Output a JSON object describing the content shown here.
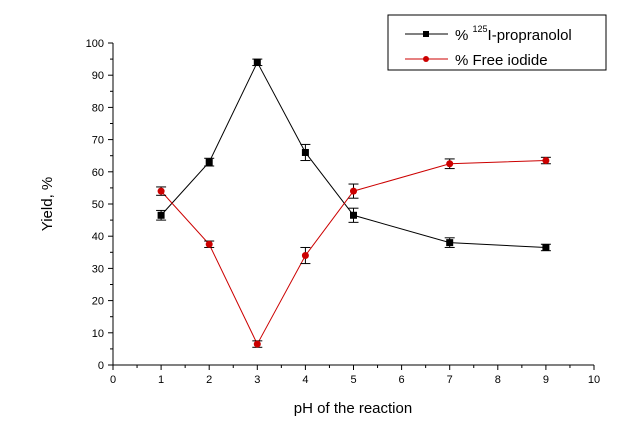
{
  "chart_data": {
    "type": "line",
    "title": "",
    "xlabel": "pH of the reaction",
    "ylabel": "Yield, %",
    "xlim": [
      0,
      10
    ],
    "ylim": [
      0,
      100
    ],
    "x_ticks": [
      "0",
      "1",
      "2",
      "3",
      "4",
      "5",
      "6",
      "7",
      "8",
      "9",
      "10"
    ],
    "y_ticks": [
      "0",
      "10",
      "20",
      "30",
      "40",
      "50",
      "60",
      "70",
      "80",
      "90",
      "100"
    ],
    "grid": false,
    "legend_position": "top-right",
    "series": [
      {
        "name_prefix": "% ",
        "name_superscript": "125",
        "name_suffix": "I-propranolol",
        "color": "#000000",
        "marker": "square",
        "x": [
          1,
          2,
          3,
          4,
          5,
          7,
          9
        ],
        "y": [
          46.5,
          63,
          94,
          66,
          46.5,
          38,
          36.5
        ],
        "error": [
          1.5,
          1.2,
          1.0,
          2.5,
          2.2,
          1.5,
          1.0
        ]
      },
      {
        "name": "% Free iodide",
        "color": "#cc0000",
        "marker": "circle",
        "x": [
          1,
          2,
          3,
          4,
          5,
          7,
          9
        ],
        "y": [
          54,
          37.5,
          6.5,
          34,
          54,
          62.5,
          63.5
        ],
        "error": [
          1.3,
          1.0,
          1.0,
          2.5,
          2.2,
          1.5,
          1.0
        ]
      }
    ]
  }
}
